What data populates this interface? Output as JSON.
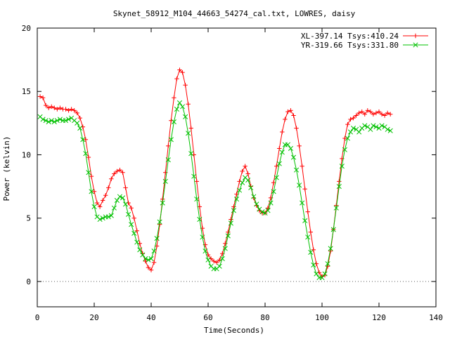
{
  "chart_data": {
    "type": "line",
    "title": "Skynet_58912_M104_44663_54274_cal.txt, LOWRES, daisy",
    "xlabel": "Time(Seconds)",
    "ylabel": "Power (kelvin)",
    "xlim": [
      0,
      140
    ],
    "ylim": [
      -2,
      20
    ],
    "x_ticks": [
      0,
      20,
      40,
      60,
      80,
      100,
      120,
      140
    ],
    "y_ticks": [
      0,
      5,
      10,
      15,
      20
    ],
    "grid": false,
    "legend_position": "top-right",
    "series": [
      {
        "name": "XL-397.14 Tsys:410.24",
        "color": "#ff0000",
        "marker": "plus",
        "x": [
          1,
          2,
          3,
          4,
          5,
          6,
          7,
          8,
          9,
          10,
          11,
          12,
          13,
          14,
          15,
          16,
          17,
          18,
          19,
          20,
          21,
          22,
          23,
          24,
          25,
          26,
          27,
          28,
          29,
          30,
          31,
          32,
          33,
          34,
          35,
          36,
          37,
          38,
          39,
          40,
          41,
          42,
          43,
          44,
          45,
          46,
          47,
          48,
          49,
          50,
          51,
          52,
          53,
          54,
          55,
          56,
          57,
          58,
          59,
          60,
          61,
          62,
          63,
          64,
          65,
          66,
          67,
          68,
          69,
          70,
          71,
          72,
          73,
          74,
          75,
          76,
          77,
          78,
          79,
          80,
          81,
          82,
          83,
          84,
          85,
          86,
          87,
          88,
          89,
          90,
          91,
          92,
          93,
          94,
          95,
          96,
          97,
          98,
          99,
          100,
          101,
          102,
          103,
          104,
          105,
          106,
          107,
          108,
          109,
          110,
          111,
          112,
          113,
          114,
          115,
          116,
          117,
          118,
          119,
          120,
          121,
          122,
          123,
          124
        ],
        "y": [
          14.6,
          14.5,
          13.9,
          13.7,
          13.8,
          13.7,
          13.6,
          13.7,
          13.6,
          13.6,
          13.5,
          13.6,
          13.5,
          13.3,
          12.9,
          12.2,
          11.2,
          9.8,
          8.3,
          7.1,
          6.2,
          5.9,
          6.4,
          6.8,
          7.4,
          8.1,
          8.5,
          8.7,
          8.8,
          8.6,
          7.4,
          6.2,
          5.8,
          5.0,
          4.0,
          3.0,
          2.2,
          1.6,
          1.1,
          0.9,
          1.5,
          2.8,
          4.5,
          6.5,
          8.6,
          10.7,
          12.7,
          14.5,
          16.0,
          16.7,
          16.5,
          15.5,
          14.0,
          12.1,
          10.0,
          7.9,
          5.9,
          4.2,
          2.9,
          2.1,
          1.8,
          1.6,
          1.5,
          1.7,
          2.2,
          3.0,
          3.9,
          4.9,
          5.9,
          6.9,
          7.9,
          8.7,
          9.1,
          8.5,
          7.5,
          6.6,
          6.0,
          5.6,
          5.4,
          5.4,
          5.8,
          6.6,
          7.8,
          9.1,
          10.5,
          11.8,
          12.8,
          13.4,
          13.5,
          13.1,
          12.1,
          10.7,
          9.1,
          7.3,
          5.5,
          3.9,
          2.5,
          1.4,
          0.7,
          0.4,
          0.5,
          1.2,
          2.4,
          4.1,
          6.0,
          7.9,
          9.7,
          11.3,
          12.4,
          12.8,
          12.9,
          13.1,
          13.3,
          13.4,
          13.2,
          13.5,
          13.4,
          13.2,
          13.3,
          13.4,
          13.2,
          13.1,
          13.3,
          13.2
        ]
      },
      {
        "name": "YR-319.66 Tsys:331.80",
        "color": "#00c000",
        "marker": "cross",
        "x": [
          1,
          2,
          3,
          4,
          5,
          6,
          7,
          8,
          9,
          10,
          11,
          12,
          13,
          14,
          15,
          16,
          17,
          18,
          19,
          20,
          21,
          22,
          23,
          24,
          25,
          26,
          27,
          28,
          29,
          30,
          31,
          32,
          33,
          34,
          35,
          36,
          37,
          38,
          39,
          40,
          41,
          42,
          43,
          44,
          45,
          46,
          47,
          48,
          49,
          50,
          51,
          52,
          53,
          54,
          55,
          56,
          57,
          58,
          59,
          60,
          61,
          62,
          63,
          64,
          65,
          66,
          67,
          68,
          69,
          70,
          71,
          72,
          73,
          74,
          75,
          76,
          77,
          78,
          79,
          80,
          81,
          82,
          83,
          84,
          85,
          86,
          87,
          88,
          89,
          90,
          91,
          92,
          93,
          94,
          95,
          96,
          97,
          98,
          99,
          100,
          101,
          102,
          103,
          104,
          105,
          106,
          107,
          108,
          109,
          110,
          111,
          112,
          113,
          114,
          115,
          116,
          117,
          118,
          119,
          120,
          121,
          122,
          123,
          124
        ],
        "y": [
          13.0,
          12.8,
          12.7,
          12.6,
          12.7,
          12.6,
          12.7,
          12.8,
          12.7,
          12.7,
          12.8,
          12.9,
          12.7,
          12.5,
          12.1,
          11.2,
          10.1,
          8.6,
          7.1,
          5.9,
          5.1,
          4.9,
          5.0,
          5.1,
          5.1,
          5.2,
          5.8,
          6.4,
          6.7,
          6.6,
          6.1,
          5.3,
          4.5,
          3.8,
          3.1,
          2.5,
          2.1,
          1.8,
          1.7,
          1.8,
          2.4,
          3.4,
          4.7,
          6.2,
          7.9,
          9.6,
          11.2,
          12.6,
          13.6,
          14.1,
          13.8,
          13.0,
          11.7,
          10.1,
          8.3,
          6.5,
          4.9,
          3.5,
          2.4,
          1.7,
          1.2,
          1.0,
          1.0,
          1.2,
          1.8,
          2.6,
          3.6,
          4.6,
          5.6,
          6.5,
          7.2,
          7.8,
          8.2,
          8.0,
          7.4,
          6.7,
          6.1,
          5.7,
          5.5,
          5.4,
          5.6,
          6.2,
          7.1,
          8.2,
          9.3,
          10.2,
          10.8,
          10.8,
          10.5,
          9.8,
          8.8,
          7.6,
          6.2,
          4.8,
          3.5,
          2.3,
          1.3,
          0.6,
          0.3,
          0.3,
          0.6,
          1.4,
          2.6,
          4.1,
          5.8,
          7.5,
          9.1,
          10.4,
          11.3,
          11.8,
          12.1,
          12.0,
          11.8,
          12.1,
          12.3,
          12.2,
          12.0,
          12.3,
          12.2,
          12.1,
          12.3,
          12.2,
          12.0,
          11.9
        ]
      }
    ]
  }
}
